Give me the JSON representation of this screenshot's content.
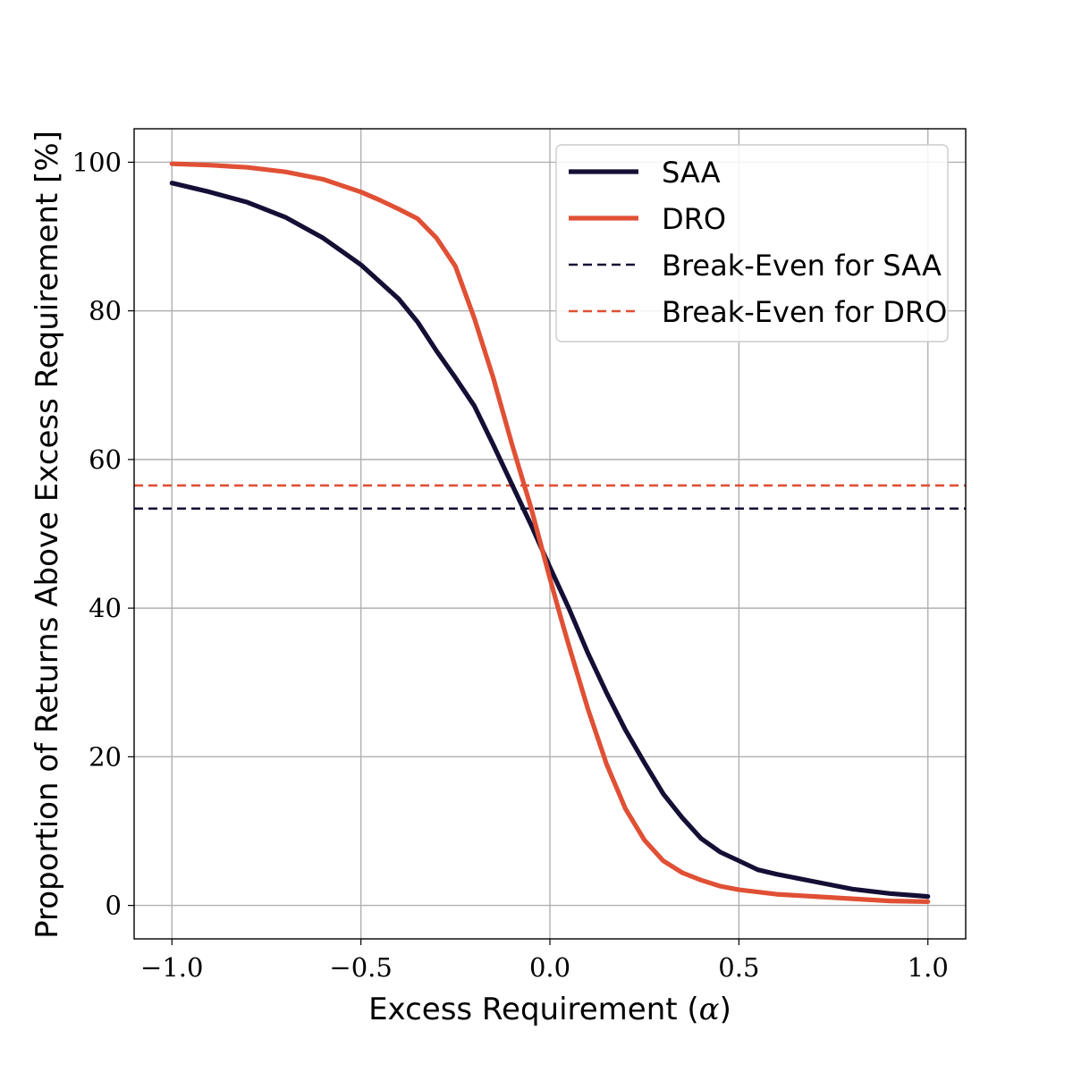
{
  "chart_data": {
    "type": "line",
    "xlabel_text": "Excess Requirement (",
    "xlabel_symbol": "α",
    "xlabel_close": ")",
    "ylabel": "Proportion of Returns Above Excess Requirement [%]",
    "xlim": [
      -1.1,
      1.1
    ],
    "ylim": [
      -4.5,
      104.5
    ],
    "x_ticks": [
      -1.0,
      -0.5,
      0.0,
      0.5,
      1.0
    ],
    "x_tick_labels": [
      "−1.0",
      "−0.5",
      "0.0",
      "0.5",
      "1.0"
    ],
    "y_ticks": [
      0,
      20,
      40,
      60,
      80,
      100
    ],
    "y_tick_labels": [
      "0",
      "20",
      "40",
      "60",
      "80",
      "100"
    ],
    "grid": true,
    "legend_position": "top-right",
    "series": [
      {
        "name": "SAA",
        "color": "#140f35",
        "style": "solid",
        "x": [
          -1.0,
          -0.9,
          -0.8,
          -0.7,
          -0.6,
          -0.5,
          -0.4,
          -0.35,
          -0.3,
          -0.25,
          -0.2,
          -0.15,
          -0.1,
          -0.05,
          0.0,
          0.05,
          0.1,
          0.15,
          0.2,
          0.25,
          0.3,
          0.35,
          0.4,
          0.45,
          0.5,
          0.55,
          0.6,
          0.7,
          0.8,
          0.9,
          1.0
        ],
        "y": [
          97.2,
          96.0,
          94.6,
          92.6,
          89.8,
          86.2,
          81.6,
          78.5,
          74.6,
          71.0,
          67.2,
          62.0,
          56.6,
          51.2,
          45.5,
          40.0,
          34.0,
          28.6,
          23.6,
          19.2,
          15.0,
          11.8,
          9.0,
          7.2,
          6.0,
          4.8,
          4.2,
          3.2,
          2.2,
          1.6,
          1.2
        ]
      },
      {
        "name": "DRO",
        "color": "#e05035",
        "style": "solid",
        "x": [
          -1.0,
          -0.9,
          -0.8,
          -0.7,
          -0.6,
          -0.5,
          -0.45,
          -0.4,
          -0.35,
          -0.3,
          -0.25,
          -0.2,
          -0.15,
          -0.1,
          -0.05,
          0.0,
          0.03,
          0.05,
          0.1,
          0.15,
          0.2,
          0.25,
          0.3,
          0.35,
          0.4,
          0.45,
          0.5,
          0.6,
          0.7,
          0.8,
          0.9,
          1.0
        ],
        "y": [
          99.8,
          99.6,
          99.3,
          98.7,
          97.7,
          96.0,
          94.9,
          93.7,
          92.4,
          89.8,
          86.0,
          79.0,
          71.0,
          62.0,
          53.5,
          44.0,
          38.5,
          35.0,
          26.5,
          19.0,
          13.0,
          8.8,
          6.0,
          4.4,
          3.4,
          2.6,
          2.1,
          1.5,
          1.2,
          0.9,
          0.6,
          0.5
        ]
      },
      {
        "name": "Break-Even for SAA",
        "color": "#140f35",
        "style": "dashed",
        "hline": 53.4
      },
      {
        "name": "Break-Even for DRO",
        "color": "#e05035",
        "style": "dashed",
        "hline": 56.5
      }
    ]
  }
}
